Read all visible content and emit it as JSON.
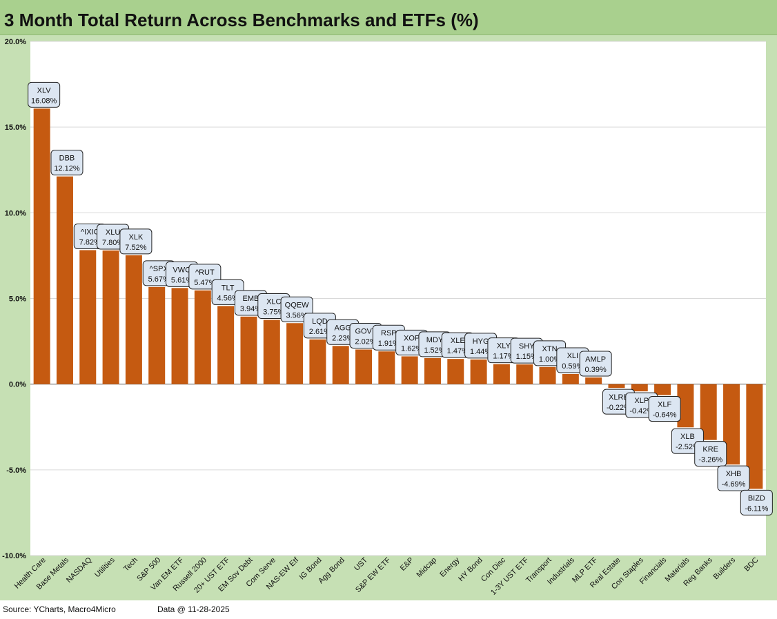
{
  "chart_data": {
    "type": "bar",
    "title": "3 Month Total Return Across Benchmarks and ETFs (%)",
    "ylim": [
      -10,
      20
    ],
    "y_ticks": [
      "20.0%",
      "15.0%",
      "10.0%",
      "5.0%",
      "0.0%",
      "-5.0%",
      "-10.0%"
    ],
    "grid": true,
    "bar_color": "#c55a11",
    "categories": [
      "Health Care",
      "Base Metals",
      "NASDAQ",
      "Utilities",
      "Tech",
      "S&P 500",
      "Van EM ETF",
      "Russell 2000",
      "20+ UST ETF",
      "EM Sov Debt",
      "Com Serve",
      "NAS-EW Etf",
      "IG Bond",
      "Agg Bond",
      "UST",
      "S&P EW ETF",
      "E&P",
      "Midcap",
      "Energy",
      "HY Bond",
      "Con Disc",
      "1-3Y UST ETF",
      "Transport",
      "Industrials",
      "MLP ETF",
      "Real Estate",
      "Con Staples",
      "Financials",
      "Materials",
      "Reg Banks",
      "Builders",
      "BDC"
    ],
    "tickers": [
      "XLV",
      "DBB",
      "^IXIC",
      "XLU",
      "XLK",
      "^SPX",
      "VWO",
      "^RUT",
      "TLT",
      "EMB",
      "XLC",
      "QQEW",
      "LQD",
      "AGG",
      "GOVT",
      "RSP",
      "XOP",
      "MDY",
      "XLE",
      "HYG",
      "XLY",
      "SHY",
      "XTN",
      "XLI",
      "AMLP",
      "XLRE",
      "XLP",
      "XLF",
      "XLB",
      "KRE",
      "XHB",
      "BIZD"
    ],
    "values": [
      16.08,
      12.12,
      7.82,
      7.8,
      7.52,
      5.67,
      5.61,
      5.47,
      4.56,
      3.94,
      3.75,
      3.56,
      2.61,
      2.23,
      2.02,
      1.91,
      1.62,
      1.52,
      1.47,
      1.44,
      1.17,
      1.15,
      1.0,
      0.59,
      0.39,
      -0.22,
      -0.42,
      -0.64,
      -2.52,
      -3.26,
      -4.69,
      -6.11
    ],
    "value_labels": [
      "16.08%",
      "12.12%",
      "7.82%",
      "7.80%",
      "7.52%",
      "5.67%",
      "5.61%",
      "5.47%",
      "4.56%",
      "3.94%",
      "3.75%",
      "3.56%",
      "2.61%",
      "2.23%",
      "2.02%",
      "1.91%",
      "1.62%",
      "1.52%",
      "1.47%",
      "1.44%",
      "1.17%",
      "1.15%",
      "1.00%",
      "0.59%",
      "0.39%",
      "-0.22%",
      "-0.42%",
      "-0.64%",
      "-2.52%",
      "-3.26%",
      "-4.69%",
      "-6.11%"
    ]
  },
  "footer": {
    "source": "Source: YCharts, Macro4Micro",
    "data_date": "Data @ 11-28-2025"
  }
}
